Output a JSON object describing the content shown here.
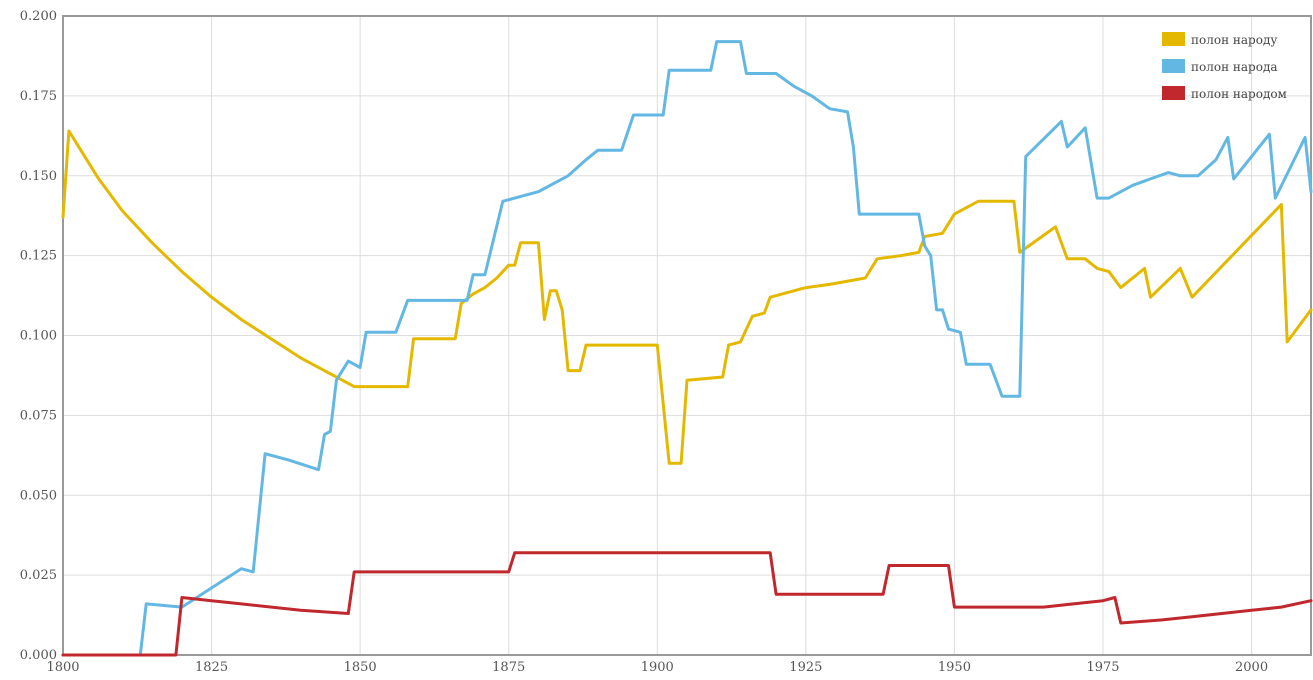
{
  "chart_data": {
    "type": "line",
    "title": "",
    "xlabel": "",
    "ylabel": "",
    "xlim": [
      1800,
      2010
    ],
    "ylim": [
      0,
      0.2
    ],
    "grid": true,
    "legend_position": "top-right",
    "x_ticks": [
      {
        "value": 1800,
        "label": "1800"
      },
      {
        "value": 1825,
        "label": "1825"
      },
      {
        "value": 1850,
        "label": "1850"
      },
      {
        "value": 1875,
        "label": "1875"
      },
      {
        "value": 1900,
        "label": "1900"
      },
      {
        "value": 1925,
        "label": "1925"
      },
      {
        "value": 1950,
        "label": "1950"
      },
      {
        "value": 1975,
        "label": "1975"
      },
      {
        "value": 2000,
        "label": "2000"
      }
    ],
    "y_ticks": [
      {
        "value": 0.0,
        "label": "0.000"
      },
      {
        "value": 0.025,
        "label": "0.025"
      },
      {
        "value": 0.05,
        "label": "0.050"
      },
      {
        "value": 0.075,
        "label": "0.075"
      },
      {
        "value": 0.1,
        "label": "0.100"
      },
      {
        "value": 0.125,
        "label": "0.125"
      },
      {
        "value": 0.15,
        "label": "0.150"
      },
      {
        "value": 0.175,
        "label": "0.175"
      },
      {
        "value": 0.2,
        "label": "0.200"
      }
    ],
    "series": [
      {
        "name": "полон народу",
        "color": "#e5b800",
        "points": [
          [
            1800,
            0.137
          ],
          [
            1801,
            0.164
          ],
          [
            1803,
            0.158
          ],
          [
            1806,
            0.149
          ],
          [
            1810,
            0.139
          ],
          [
            1815,
            0.129
          ],
          [
            1820,
            0.12
          ],
          [
            1825,
            0.112
          ],
          [
            1830,
            0.105
          ],
          [
            1835,
            0.099
          ],
          [
            1840,
            0.093
          ],
          [
            1845,
            0.088
          ],
          [
            1849,
            0.084
          ],
          [
            1858,
            0.084
          ],
          [
            1859,
            0.099
          ],
          [
            1866,
            0.099
          ],
          [
            1867,
            0.11
          ],
          [
            1869,
            0.113
          ],
          [
            1871,
            0.115
          ],
          [
            1873,
            0.118
          ],
          [
            1875,
            0.122
          ],
          [
            1876,
            0.122
          ],
          [
            1877,
            0.129
          ],
          [
            1880,
            0.129
          ],
          [
            1881,
            0.105
          ],
          [
            1882,
            0.114
          ],
          [
            1883,
            0.114
          ],
          [
            1884,
            0.108
          ],
          [
            1885,
            0.089
          ],
          [
            1887,
            0.089
          ],
          [
            1888,
            0.097
          ],
          [
            1900,
            0.097
          ],
          [
            1902,
            0.06
          ],
          [
            1904,
            0.06
          ],
          [
            1905,
            0.086
          ],
          [
            1911,
            0.087
          ],
          [
            1912,
            0.097
          ],
          [
            1914,
            0.098
          ],
          [
            1916,
            0.106
          ],
          [
            1918,
            0.107
          ],
          [
            1919,
            0.112
          ],
          [
            1925,
            0.115
          ],
          [
            1929,
            0.116
          ],
          [
            1935,
            0.118
          ],
          [
            1937,
            0.124
          ],
          [
            1941,
            0.125
          ],
          [
            1944,
            0.126
          ],
          [
            1945,
            0.131
          ],
          [
            1948,
            0.132
          ],
          [
            1950,
            0.138
          ],
          [
            1952,
            0.14
          ],
          [
            1954,
            0.142
          ],
          [
            1960,
            0.142
          ],
          [
            1961,
            0.126
          ],
          [
            1967,
            0.134
          ],
          [
            1969,
            0.124
          ],
          [
            1972,
            0.124
          ],
          [
            1974,
            0.121
          ],
          [
            1976,
            0.12
          ],
          [
            1978,
            0.115
          ],
          [
            1982,
            0.121
          ],
          [
            1983,
            0.112
          ],
          [
            1988,
            0.121
          ],
          [
            1990,
            0.112
          ],
          [
            2005,
            0.141
          ],
          [
            2006,
            0.098
          ],
          [
            2010,
            0.108
          ]
        ]
      },
      {
        "name": "полон народа",
        "color": "#62b8e3",
        "points": [
          [
            1800,
            0.0
          ],
          [
            1813,
            0.0
          ],
          [
            1814,
            0.016
          ],
          [
            1820,
            0.015
          ],
          [
            1825,
            0.021
          ],
          [
            1830,
            0.027
          ],
          [
            1832,
            0.026
          ],
          [
            1834,
            0.063
          ],
          [
            1838,
            0.061
          ],
          [
            1843,
            0.058
          ],
          [
            1844,
            0.069
          ],
          [
            1845,
            0.07
          ],
          [
            1846,
            0.086
          ],
          [
            1848,
            0.092
          ],
          [
            1850,
            0.09
          ],
          [
            1851,
            0.101
          ],
          [
            1856,
            0.101
          ],
          [
            1858,
            0.111
          ],
          [
            1868,
            0.111
          ],
          [
            1869,
            0.119
          ],
          [
            1871,
            0.119
          ],
          [
            1874,
            0.142
          ],
          [
            1876,
            0.143
          ],
          [
            1880,
            0.145
          ],
          [
            1882,
            0.147
          ],
          [
            1885,
            0.15
          ],
          [
            1888,
            0.155
          ],
          [
            1890,
            0.158
          ],
          [
            1894,
            0.158
          ],
          [
            1896,
            0.169
          ],
          [
            1901,
            0.169
          ],
          [
            1902,
            0.183
          ],
          [
            1909,
            0.183
          ],
          [
            1910,
            0.192
          ],
          [
            1914,
            0.192
          ],
          [
            1915,
            0.182
          ],
          [
            1920,
            0.182
          ],
          [
            1923,
            0.178
          ],
          [
            1926,
            0.175
          ],
          [
            1929,
            0.171
          ],
          [
            1932,
            0.17
          ],
          [
            1933,
            0.159
          ],
          [
            1934,
            0.138
          ],
          [
            1939,
            0.138
          ],
          [
            1944,
            0.138
          ],
          [
            1945,
            0.128
          ],
          [
            1946,
            0.125
          ],
          [
            1947,
            0.108
          ],
          [
            1948,
            0.108
          ],
          [
            1949,
            0.102
          ],
          [
            1951,
            0.101
          ],
          [
            1952,
            0.091
          ],
          [
            1956,
            0.091
          ],
          [
            1958,
            0.081
          ],
          [
            1961,
            0.081
          ],
          [
            1962,
            0.156
          ],
          [
            1968,
            0.167
          ],
          [
            1969,
            0.159
          ],
          [
            1972,
            0.165
          ],
          [
            1974,
            0.143
          ],
          [
            1976,
            0.143
          ],
          [
            1978,
            0.145
          ],
          [
            1980,
            0.147
          ],
          [
            1983,
            0.149
          ],
          [
            1986,
            0.151
          ],
          [
            1988,
            0.15
          ],
          [
            1991,
            0.15
          ],
          [
            1994,
            0.155
          ],
          [
            1996,
            0.162
          ],
          [
            1997,
            0.149
          ],
          [
            2003,
            0.163
          ],
          [
            2004,
            0.143
          ],
          [
            2009,
            0.162
          ],
          [
            2010,
            0.145
          ]
        ]
      },
      {
        "name": "полон народом",
        "color": "#c0282d",
        "points": [
          [
            1800,
            0.0
          ],
          [
            1819,
            0.0
          ],
          [
            1820,
            0.018
          ],
          [
            1825,
            0.017
          ],
          [
            1830,
            0.016
          ],
          [
            1840,
            0.014
          ],
          [
            1848,
            0.013
          ],
          [
            1849,
            0.026
          ],
          [
            1875,
            0.026
          ],
          [
            1876,
            0.032
          ],
          [
            1919,
            0.032
          ],
          [
            1920,
            0.019
          ],
          [
            1938,
            0.019
          ],
          [
            1939,
            0.028
          ],
          [
            1949,
            0.028
          ],
          [
            1950,
            0.015
          ],
          [
            1962,
            0.015
          ],
          [
            1965,
            0.015
          ],
          [
            1970,
            0.016
          ],
          [
            1975,
            0.017
          ],
          [
            1977,
            0.018
          ],
          [
            1978,
            0.01
          ],
          [
            1985,
            0.011
          ],
          [
            1990,
            0.012
          ],
          [
            1995,
            0.013
          ],
          [
            2000,
            0.014
          ],
          [
            2005,
            0.015
          ],
          [
            2010,
            0.017
          ]
        ]
      }
    ]
  }
}
